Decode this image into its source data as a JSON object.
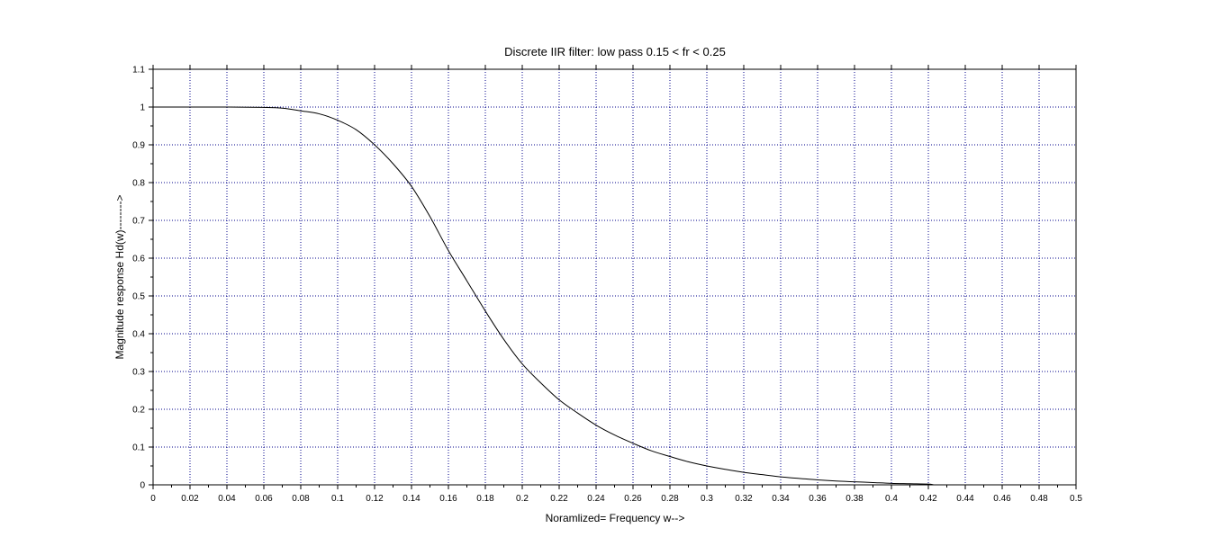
{
  "chart_data": {
    "type": "line",
    "title": "Discrete IIR filter: low pass  0.15 < fr < 0.25",
    "xlabel": "Noramlized= Frequency w-->",
    "ylabel": "Magnitude response Hd(w)-------->",
    "xlim": [
      0,
      0.5
    ],
    "ylim": [
      0,
      1.1
    ],
    "grid": true,
    "xticks": [
      "0",
      "0.02",
      "0.04",
      "0.06",
      "0.08",
      "0.1",
      "0.12",
      "0.14",
      "0.16",
      "0.18",
      "0.2",
      "0.22",
      "0.24",
      "0.26",
      "0.28",
      "0.3",
      "0.32",
      "0.34",
      "0.36",
      "0.38",
      "0.4",
      "0.42",
      "0.44",
      "0.46",
      "0.48",
      "0.5"
    ],
    "yticks": [
      "0",
      "0.1",
      "0.2",
      "0.3",
      "0.4",
      "0.5",
      "0.6",
      "0.7",
      "0.8",
      "0.9",
      "1",
      "1.1"
    ],
    "colors": {
      "line": "#000000",
      "grid": "#00008b",
      "axis": "#000000"
    },
    "series": [
      {
        "x": [
          0,
          0.02,
          0.04,
          0.06,
          0.07,
          0.08,
          0.09,
          0.1,
          0.11,
          0.12,
          0.13,
          0.14,
          0.15,
          0.16,
          0.17,
          0.18,
          0.19,
          0.2,
          0.21,
          0.22,
          0.23,
          0.24,
          0.25,
          0.26,
          0.27,
          0.28,
          0.29,
          0.3,
          0.31,
          0.32,
          0.33,
          0.34,
          0.35,
          0.36,
          0.37,
          0.38,
          0.39,
          0.4,
          0.41,
          0.42,
          0.423
        ],
        "values": [
          1.0,
          1.0,
          1.0,
          0.999,
          0.997,
          0.99,
          0.982,
          0.965,
          0.94,
          0.9,
          0.85,
          0.79,
          0.71,
          0.62,
          0.54,
          0.46,
          0.385,
          0.32,
          0.27,
          0.225,
          0.19,
          0.158,
          0.132,
          0.11,
          0.09,
          0.075,
          0.061,
          0.05,
          0.041,
          0.033,
          0.027,
          0.021,
          0.017,
          0.013,
          0.01,
          0.008,
          0.006,
          0.004,
          0.003,
          0.002,
          0.0
        ]
      }
    ]
  }
}
